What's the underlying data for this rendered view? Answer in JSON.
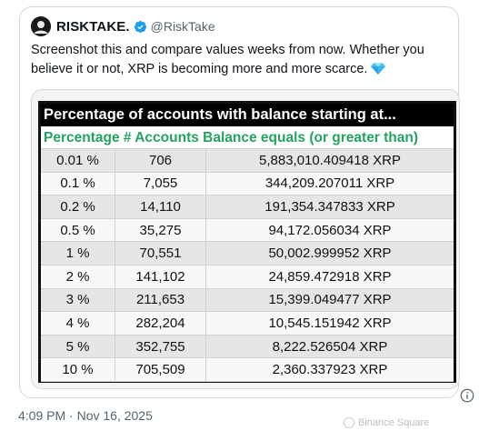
{
  "tweet": {
    "display_name": "RISKTAKE.",
    "handle": "@RiskTake",
    "text": "Screenshot this and compare values weeks from now. Whether you believe it or not, XRP is becoming more and more scarce.",
    "timestamp": "4:09 PM · Nov 16, 2025",
    "verified_color": "#1d9bf0"
  },
  "table": {
    "title": "Percentage of accounts with balance starting at...",
    "header": "Percentage # Accounts Balance equals (or greater than)",
    "header_color": "#22a35f",
    "rows": [
      {
        "pct": "0.01 %",
        "accounts": "706",
        "balance": "5,883,010.409418 XRP"
      },
      {
        "pct": "0.1 %",
        "accounts": "7,055",
        "balance": "344,209.207011 XRP"
      },
      {
        "pct": "0.2 %",
        "accounts": "14,110",
        "balance": "191,354.347833 XRP"
      },
      {
        "pct": "0.5 %",
        "accounts": "35,275",
        "balance": "94,172.056034 XRP"
      },
      {
        "pct": "1 %",
        "accounts": "70,551",
        "balance": "50,002.999952 XRP"
      },
      {
        "pct": "2 %",
        "accounts": "141,102",
        "balance": "24,859.472918 XRP"
      },
      {
        "pct": "3 %",
        "accounts": "211,653",
        "balance": "15,399.049477 XRP"
      },
      {
        "pct": "4 %",
        "accounts": "282,204",
        "balance": "10,545.151942 XRP"
      },
      {
        "pct": "5 %",
        "accounts": "352,755",
        "balance": "8,222.526504 XRP"
      },
      {
        "pct": "10 %",
        "accounts": "705,509",
        "balance": "2,360.337923 XRP"
      }
    ]
  },
  "watermark": {
    "text": "Binance Square"
  },
  "icons": {
    "avatar": "avatar-icon",
    "verified": "verified-badge-icon",
    "gem": "gem-icon",
    "more": "more-icon"
  }
}
